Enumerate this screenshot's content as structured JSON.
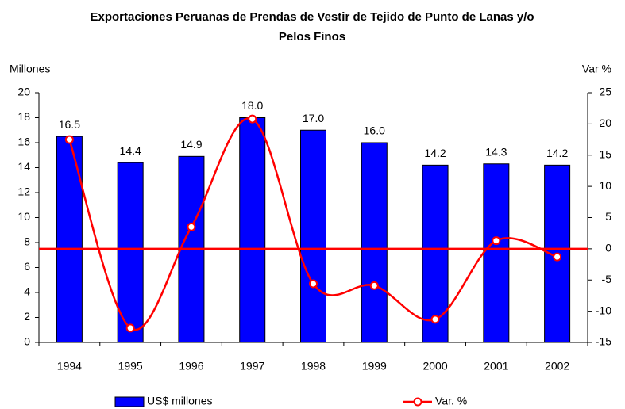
{
  "chart_data": {
    "type": "bar_line",
    "title": [
      "Exportaciones Peruanas de Prendas de Vestir de Tejido de Punto de Lanas y/o",
      "Pelos Finos"
    ],
    "y_label": "Millones",
    "y2_label": "Var %",
    "categories": [
      "1994",
      "1995",
      "1996",
      "1997",
      "1998",
      "1999",
      "2000",
      "2001",
      "2002"
    ],
    "series": [
      {
        "name": "US$ millones",
        "type": "bar",
        "color": "#0000ff",
        "values": [
          16.5,
          14.4,
          14.9,
          18.0,
          17.0,
          16.0,
          14.2,
          14.3,
          14.2
        ],
        "value_labels": [
          "16.5",
          "14.4",
          "14.9",
          "18.0",
          "17.0",
          "16.0",
          "14.2",
          "14.3",
          "14.2"
        ]
      },
      {
        "name": "Var. %",
        "type": "line",
        "axis": "y2",
        "color": "#ff0000",
        "values": [
          17.5,
          -12.7,
          3.5,
          20.8,
          -5.6,
          -5.9,
          -11.3,
          1.3,
          -1.3
        ]
      }
    ],
    "ylim": [
      0,
      20
    ],
    "yticks": [
      0,
      2,
      4,
      6,
      8,
      10,
      12,
      14,
      16,
      18,
      20
    ],
    "y2lim": [
      -15,
      25
    ],
    "y2ticks": [
      -15,
      -10,
      -5,
      0,
      5,
      10,
      15,
      20,
      25
    ],
    "y2_reference_line": 0,
    "legend": "bottom"
  }
}
